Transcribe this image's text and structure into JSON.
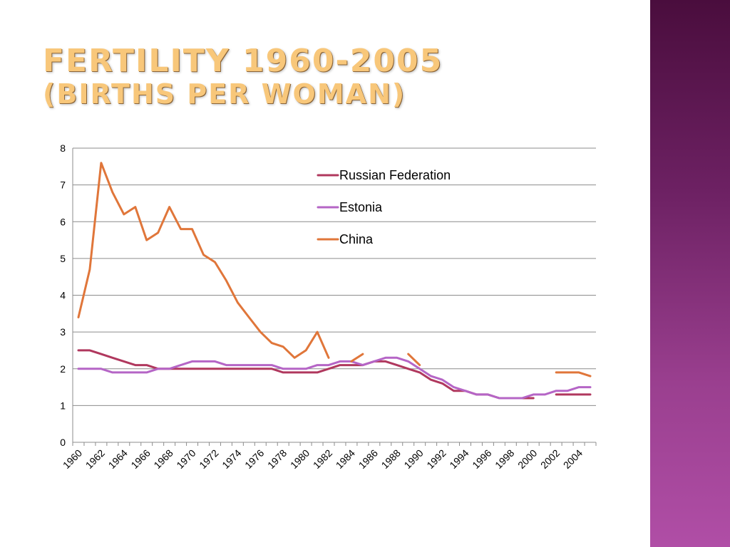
{
  "slide": {
    "title_line1": "FERTILITY 1960-2005",
    "title_line2": "(BIRTHS PER WOMAN)"
  },
  "chart_data": {
    "type": "line",
    "x": [
      1960,
      1961,
      1962,
      1963,
      1964,
      1965,
      1966,
      1967,
      1968,
      1969,
      1970,
      1971,
      1972,
      1973,
      1974,
      1975,
      1976,
      1977,
      1978,
      1979,
      1980,
      1981,
      1982,
      1983,
      1984,
      1985,
      1986,
      1987,
      1988,
      1989,
      1990,
      1991,
      1992,
      1993,
      1994,
      1995,
      1996,
      1997,
      1998,
      1999,
      2000,
      2001,
      2002,
      2003,
      2004,
      2005
    ],
    "x_tick_labels": [
      "1960",
      "1962",
      "1964",
      "1966",
      "1968",
      "1970",
      "1972",
      "1974",
      "1976",
      "1978",
      "1980",
      "1982",
      "1984",
      "1986",
      "1988",
      "1990",
      "1992",
      "1994",
      "1996",
      "1998",
      "2000",
      "2002",
      "2004"
    ],
    "y_tick_labels": [
      "0",
      "1",
      "2",
      "3",
      "4",
      "5",
      "6",
      "7",
      "8"
    ],
    "ylim": [
      0,
      8
    ],
    "grid": "horizontal",
    "legend_position": "top-right",
    "series": [
      {
        "name": "Russian Federation",
        "color": "#b0385e",
        "values": [
          2.5,
          2.5,
          2.4,
          2.3,
          2.2,
          2.1,
          2.1,
          2.0,
          2.0,
          2.0,
          2.0,
          2.0,
          2.0,
          2.0,
          2.0,
          2.0,
          2.0,
          2.0,
          1.9,
          1.9,
          1.9,
          1.9,
          2.0,
          2.1,
          2.1,
          2.1,
          2.2,
          2.2,
          2.1,
          2.0,
          1.9,
          1.7,
          1.6,
          1.4,
          1.4,
          1.3,
          1.3,
          1.2,
          1.2,
          1.2,
          1.2,
          null,
          1.3,
          1.3,
          1.3,
          1.3
        ]
      },
      {
        "name": "Estonia",
        "color": "#b565c6",
        "values": [
          2.0,
          2.0,
          2.0,
          1.9,
          1.9,
          1.9,
          1.9,
          2.0,
          2.0,
          2.1,
          2.2,
          2.2,
          2.2,
          2.1,
          2.1,
          2.1,
          2.1,
          2.1,
          2.0,
          2.0,
          2.0,
          2.1,
          2.1,
          2.2,
          2.2,
          2.1,
          2.2,
          2.3,
          2.3,
          2.2,
          2.0,
          1.8,
          1.7,
          1.5,
          1.4,
          1.3,
          1.3,
          1.2,
          1.2,
          1.2,
          1.3,
          1.3,
          1.4,
          1.4,
          1.5,
          1.5
        ]
      },
      {
        "name": "China",
        "color": "#e0763a",
        "values": [
          3.4,
          4.7,
          7.6,
          6.8,
          6.2,
          6.4,
          5.5,
          5.7,
          6.4,
          5.8,
          5.8,
          5.1,
          4.9,
          4.4,
          3.8,
          3.4,
          3.0,
          2.7,
          2.6,
          2.3,
          2.5,
          3.0,
          2.3,
          null,
          2.2,
          2.4,
          null,
          null,
          null,
          2.4,
          2.1,
          null,
          null,
          null,
          null,
          null,
          null,
          null,
          null,
          null,
          null,
          null,
          1.9,
          1.9,
          1.9,
          1.8
        ]
      }
    ]
  }
}
